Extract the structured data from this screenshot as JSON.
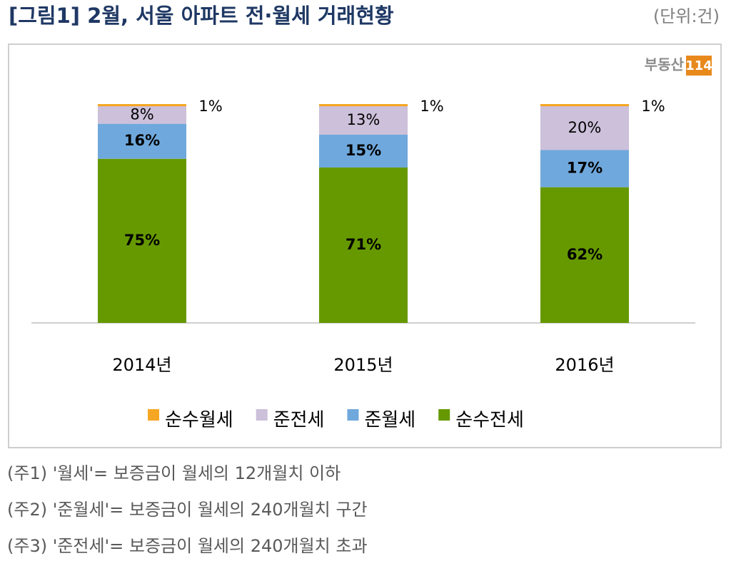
{
  "header": {
    "title": "[그림1] 2월, 서울 아파트 전·월세 거래현황",
    "unit": "(단위:건)",
    "logo": {
      "text": "부동산",
      "badge": "114"
    }
  },
  "chart_data": {
    "type": "stacked_bar",
    "categories": [
      "2014년",
      "2015년",
      "2016년"
    ],
    "ylim": [
      0,
      100
    ],
    "legend": "bottom",
    "series": [
      {
        "name": "순수전세",
        "color": "#669900",
        "values": [
          75,
          71,
          62
        ],
        "value_labels": [
          "75%",
          "71%",
          "62%"
        ]
      },
      {
        "name": "준월세",
        "color": "#6fa8dc",
        "values": [
          16,
          15,
          17
        ],
        "value_labels": [
          "16%",
          "15%",
          "17%"
        ]
      },
      {
        "name": "준전세",
        "color": "#ccc0da",
        "values": [
          8,
          13,
          20
        ],
        "value_labels": [
          "8%",
          "13%",
          "20%"
        ]
      },
      {
        "name": "순수월세",
        "color": "#f5a623",
        "values": [
          1,
          1,
          1
        ],
        "value_labels": [
          "1%",
          "1%",
          "1%"
        ]
      }
    ]
  },
  "notes": [
    "(주1) '월세'= 보증금이 월세의 12개월치 이하",
    "(주2) '준월세'= 보증금이 월세의 240개월치 구간",
    "(주3) '준전세'= 보증금이 월세의 240개월치 초과"
  ]
}
